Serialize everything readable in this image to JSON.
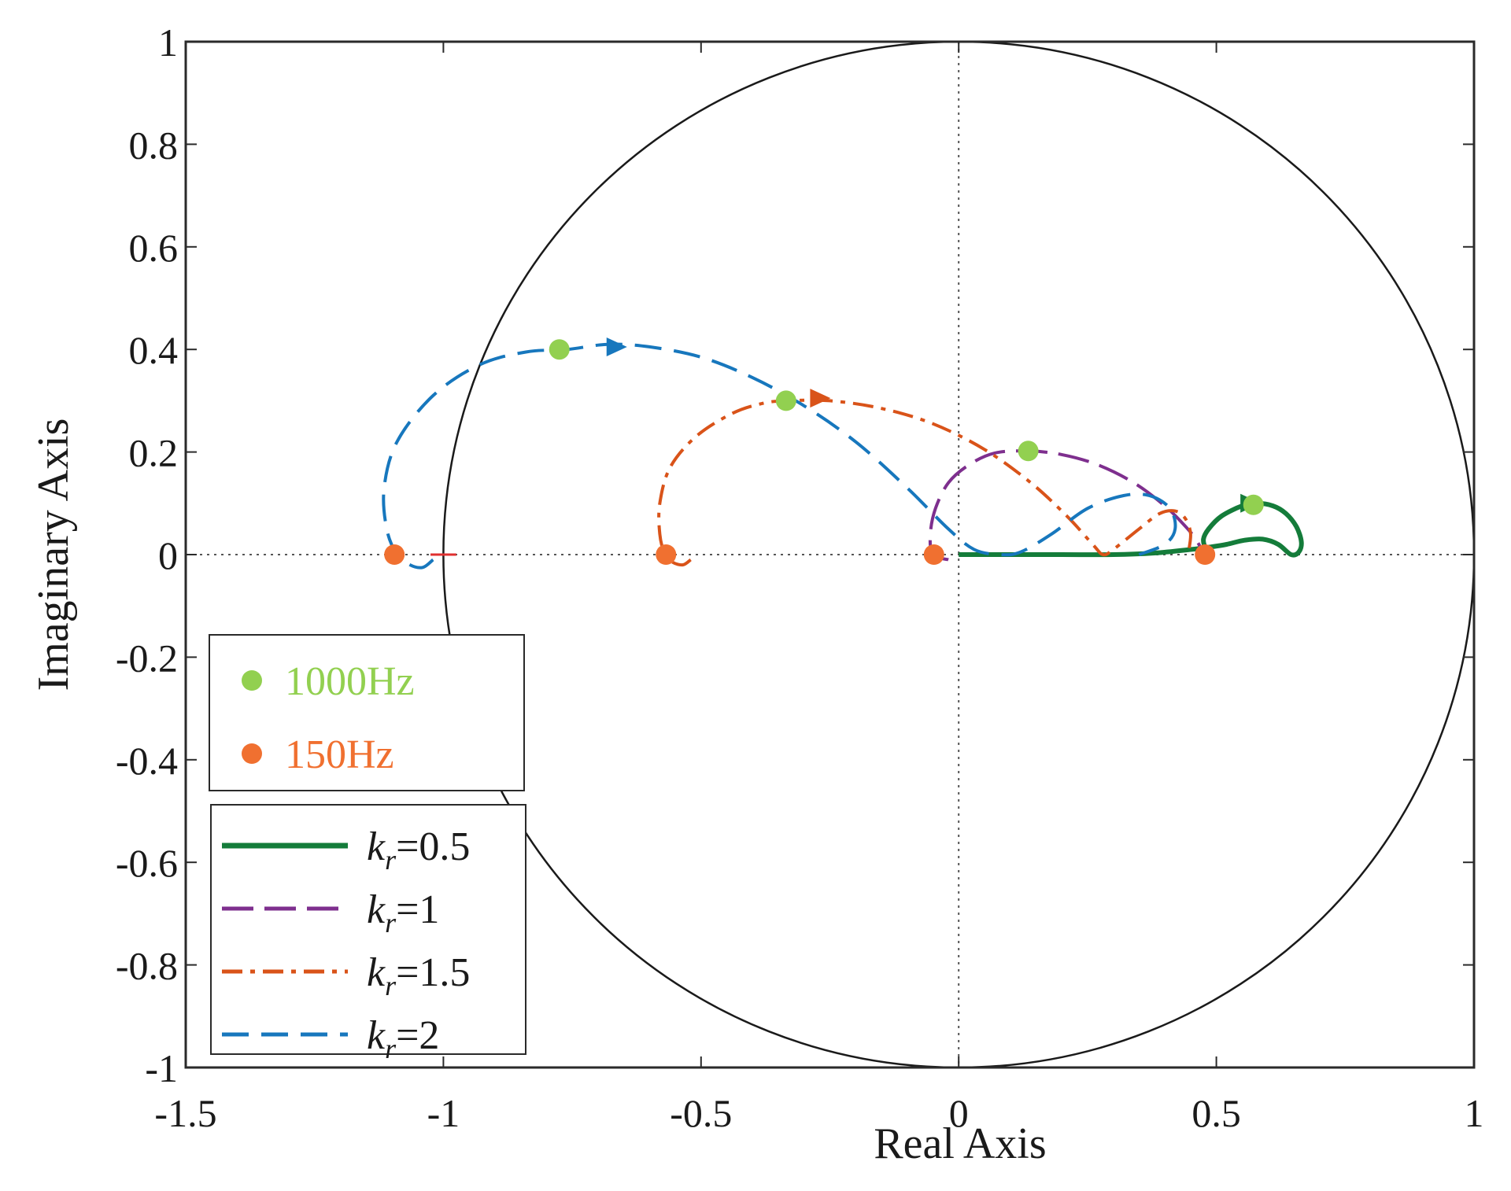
{
  "chart_data": {
    "type": "line",
    "title": "",
    "xlabel": "Real Axis",
    "ylabel": "Imaginary Axis",
    "xlim": [
      -1.5,
      1
    ],
    "ylim": [
      -1,
      1
    ],
    "xticks": [
      -1.5,
      -1,
      -0.5,
      0,
      0.5,
      1
    ],
    "xtick_labels": [
      "-1.5",
      "-1",
      "-0.5",
      "0",
      "0.5",
      "1"
    ],
    "yticks": [
      -1,
      -0.8,
      -0.6,
      -0.4,
      -0.2,
      0,
      0.2,
      0.4,
      0.6,
      0.8,
      1
    ],
    "ytick_labels": [
      "-1",
      "-0.8",
      "-0.6",
      "-0.4",
      "-0.2",
      "0",
      "0.2",
      "0.4",
      "0.6",
      "0.8",
      "1"
    ],
    "unit_circle": {
      "radius": 1,
      "center": [
        0,
        0
      ]
    },
    "series": [
      {
        "name": "kr=0.5",
        "k_symbol": "k",
        "k_sub": "r",
        "value_label": "=0.5",
        "color": "#147c3a",
        "dash": "solid",
        "points": [
          [
            0,
            0
          ],
          [
            0.1,
            0
          ],
          [
            0.2,
            0
          ],
          [
            0.3,
            0
          ],
          [
            0.38,
            0.003
          ],
          [
            0.45,
            0.01
          ],
          [
            0.49,
            0.015
          ],
          [
            0.52,
            0.02
          ],
          [
            0.555,
            0.028
          ],
          [
            0.59,
            0.03
          ],
          [
            0.62,
            0.02
          ],
          [
            0.645,
            0.0
          ],
          [
            0.66,
            0.005
          ],
          [
            0.665,
            0.025
          ],
          [
            0.655,
            0.055
          ],
          [
            0.635,
            0.08
          ],
          [
            0.61,
            0.095
          ],
          [
            0.578,
            0.1
          ],
          [
            0.55,
            0.095
          ],
          [
            0.51,
            0.075
          ],
          [
            0.485,
            0.05
          ],
          [
            0.475,
            0.03
          ],
          [
            0.48,
            0.01
          ],
          [
            0.49,
            0.0
          ]
        ],
        "marker_1000hz": [
          0.572,
          0.097
        ],
        "marker_150hz": [
          0.478,
          0.0
        ],
        "arrow": {
          "at": [
            0.565,
            0.1
          ],
          "dir": [
            1,
            0
          ]
        }
      },
      {
        "name": "kr=1",
        "k_symbol": "k",
        "k_sub": "r",
        "value_label": "=1",
        "color": "#7e2f8e",
        "dash": "long-dash",
        "points": [
          [
            -0.02,
            -0.01
          ],
          [
            -0.05,
            0.0
          ],
          [
            -0.055,
            0.04
          ],
          [
            -0.045,
            0.09
          ],
          [
            -0.02,
            0.14
          ],
          [
            0.02,
            0.175
          ],
          [
            0.07,
            0.198
          ],
          [
            0.135,
            0.202
          ],
          [
            0.2,
            0.195
          ],
          [
            0.27,
            0.175
          ],
          [
            0.34,
            0.14
          ],
          [
            0.4,
            0.095
          ],
          [
            0.44,
            0.055
          ],
          [
            0.46,
            0.03
          ],
          [
            0.47,
            0.01
          ],
          [
            0.465,
            0.0
          ]
        ],
        "marker_1000hz": [
          0.135,
          0.202
        ],
        "marker_150hz": [
          -0.048,
          0.0
        ],
        "arrow": null
      },
      {
        "name": "kr=1.5",
        "k_symbol": "k",
        "k_sub": "r",
        "value_label": "=1.5",
        "color": "#d95319",
        "dash": "dash-dot",
        "points": [
          [
            -0.52,
            -0.01
          ],
          [
            -0.535,
            -0.02
          ],
          [
            -0.555,
            -0.015
          ],
          [
            -0.57,
            0.0
          ],
          [
            -0.58,
            0.04
          ],
          [
            -0.58,
            0.1
          ],
          [
            -0.56,
            0.17
          ],
          [
            -0.51,
            0.23
          ],
          [
            -0.44,
            0.275
          ],
          [
            -0.38,
            0.295
          ],
          [
            -0.33,
            0.3
          ],
          [
            -0.25,
            0.3
          ],
          [
            -0.15,
            0.285
          ],
          [
            -0.05,
            0.255
          ],
          [
            0.05,
            0.205
          ],
          [
            0.14,
            0.14
          ],
          [
            0.21,
            0.075
          ],
          [
            0.26,
            0.02
          ],
          [
            0.28,
            0.0
          ],
          [
            0.3,
            0.01
          ],
          [
            0.35,
            0.05
          ],
          [
            0.39,
            0.08
          ],
          [
            0.42,
            0.085
          ],
          [
            0.44,
            0.07
          ],
          [
            0.45,
            0.04
          ],
          [
            0.445,
            0.0
          ]
        ],
        "marker_1000hz": [
          -0.335,
          0.3
        ],
        "marker_150hz": [
          -0.568,
          0.0
        ],
        "arrow": {
          "at": [
            -0.27,
            0.305
          ],
          "dir": [
            1,
            0
          ]
        }
      },
      {
        "name": "kr=2",
        "k_symbol": "k",
        "k_sub": "r",
        "value_label": "=2",
        "color": "#1777bd",
        "dash": "dash",
        "points": [
          [
            -1.02,
            -0.01
          ],
          [
            -1.04,
            -0.025
          ],
          [
            -1.065,
            -0.02
          ],
          [
            -1.09,
            0.0
          ],
          [
            -1.11,
            0.05
          ],
          [
            -1.115,
            0.13
          ],
          [
            -1.09,
            0.22
          ],
          [
            -1.02,
            0.31
          ],
          [
            -0.93,
            0.37
          ],
          [
            -0.84,
            0.395
          ],
          [
            -0.76,
            0.4
          ],
          [
            -0.68,
            0.41
          ],
          [
            -0.6,
            0.405
          ],
          [
            -0.5,
            0.385
          ],
          [
            -0.4,
            0.345
          ],
          [
            -0.3,
            0.29
          ],
          [
            -0.2,
            0.22
          ],
          [
            -0.1,
            0.13
          ],
          [
            -0.02,
            0.05
          ],
          [
            0.03,
            0.01
          ],
          [
            0.08,
            0.0
          ],
          [
            0.12,
            0.005
          ],
          [
            0.18,
            0.04
          ],
          [
            0.25,
            0.09
          ],
          [
            0.32,
            0.115
          ],
          [
            0.37,
            0.115
          ],
          [
            0.41,
            0.09
          ],
          [
            0.42,
            0.05
          ],
          [
            0.4,
            0.02
          ],
          [
            0.35,
            0.0
          ]
        ],
        "marker_1000hz": [
          -0.775,
          0.4
        ],
        "marker_150hz": [
          -1.095,
          0.0
        ],
        "arrow": {
          "at": [
            -0.665,
            0.405
          ],
          "dir": [
            1,
            0
          ]
        }
      }
    ],
    "frequency_legend": [
      {
        "label": "1000Hz",
        "color": "#92d050"
      },
      {
        "label": "150Hz",
        "color": "#f07030"
      }
    ]
  }
}
